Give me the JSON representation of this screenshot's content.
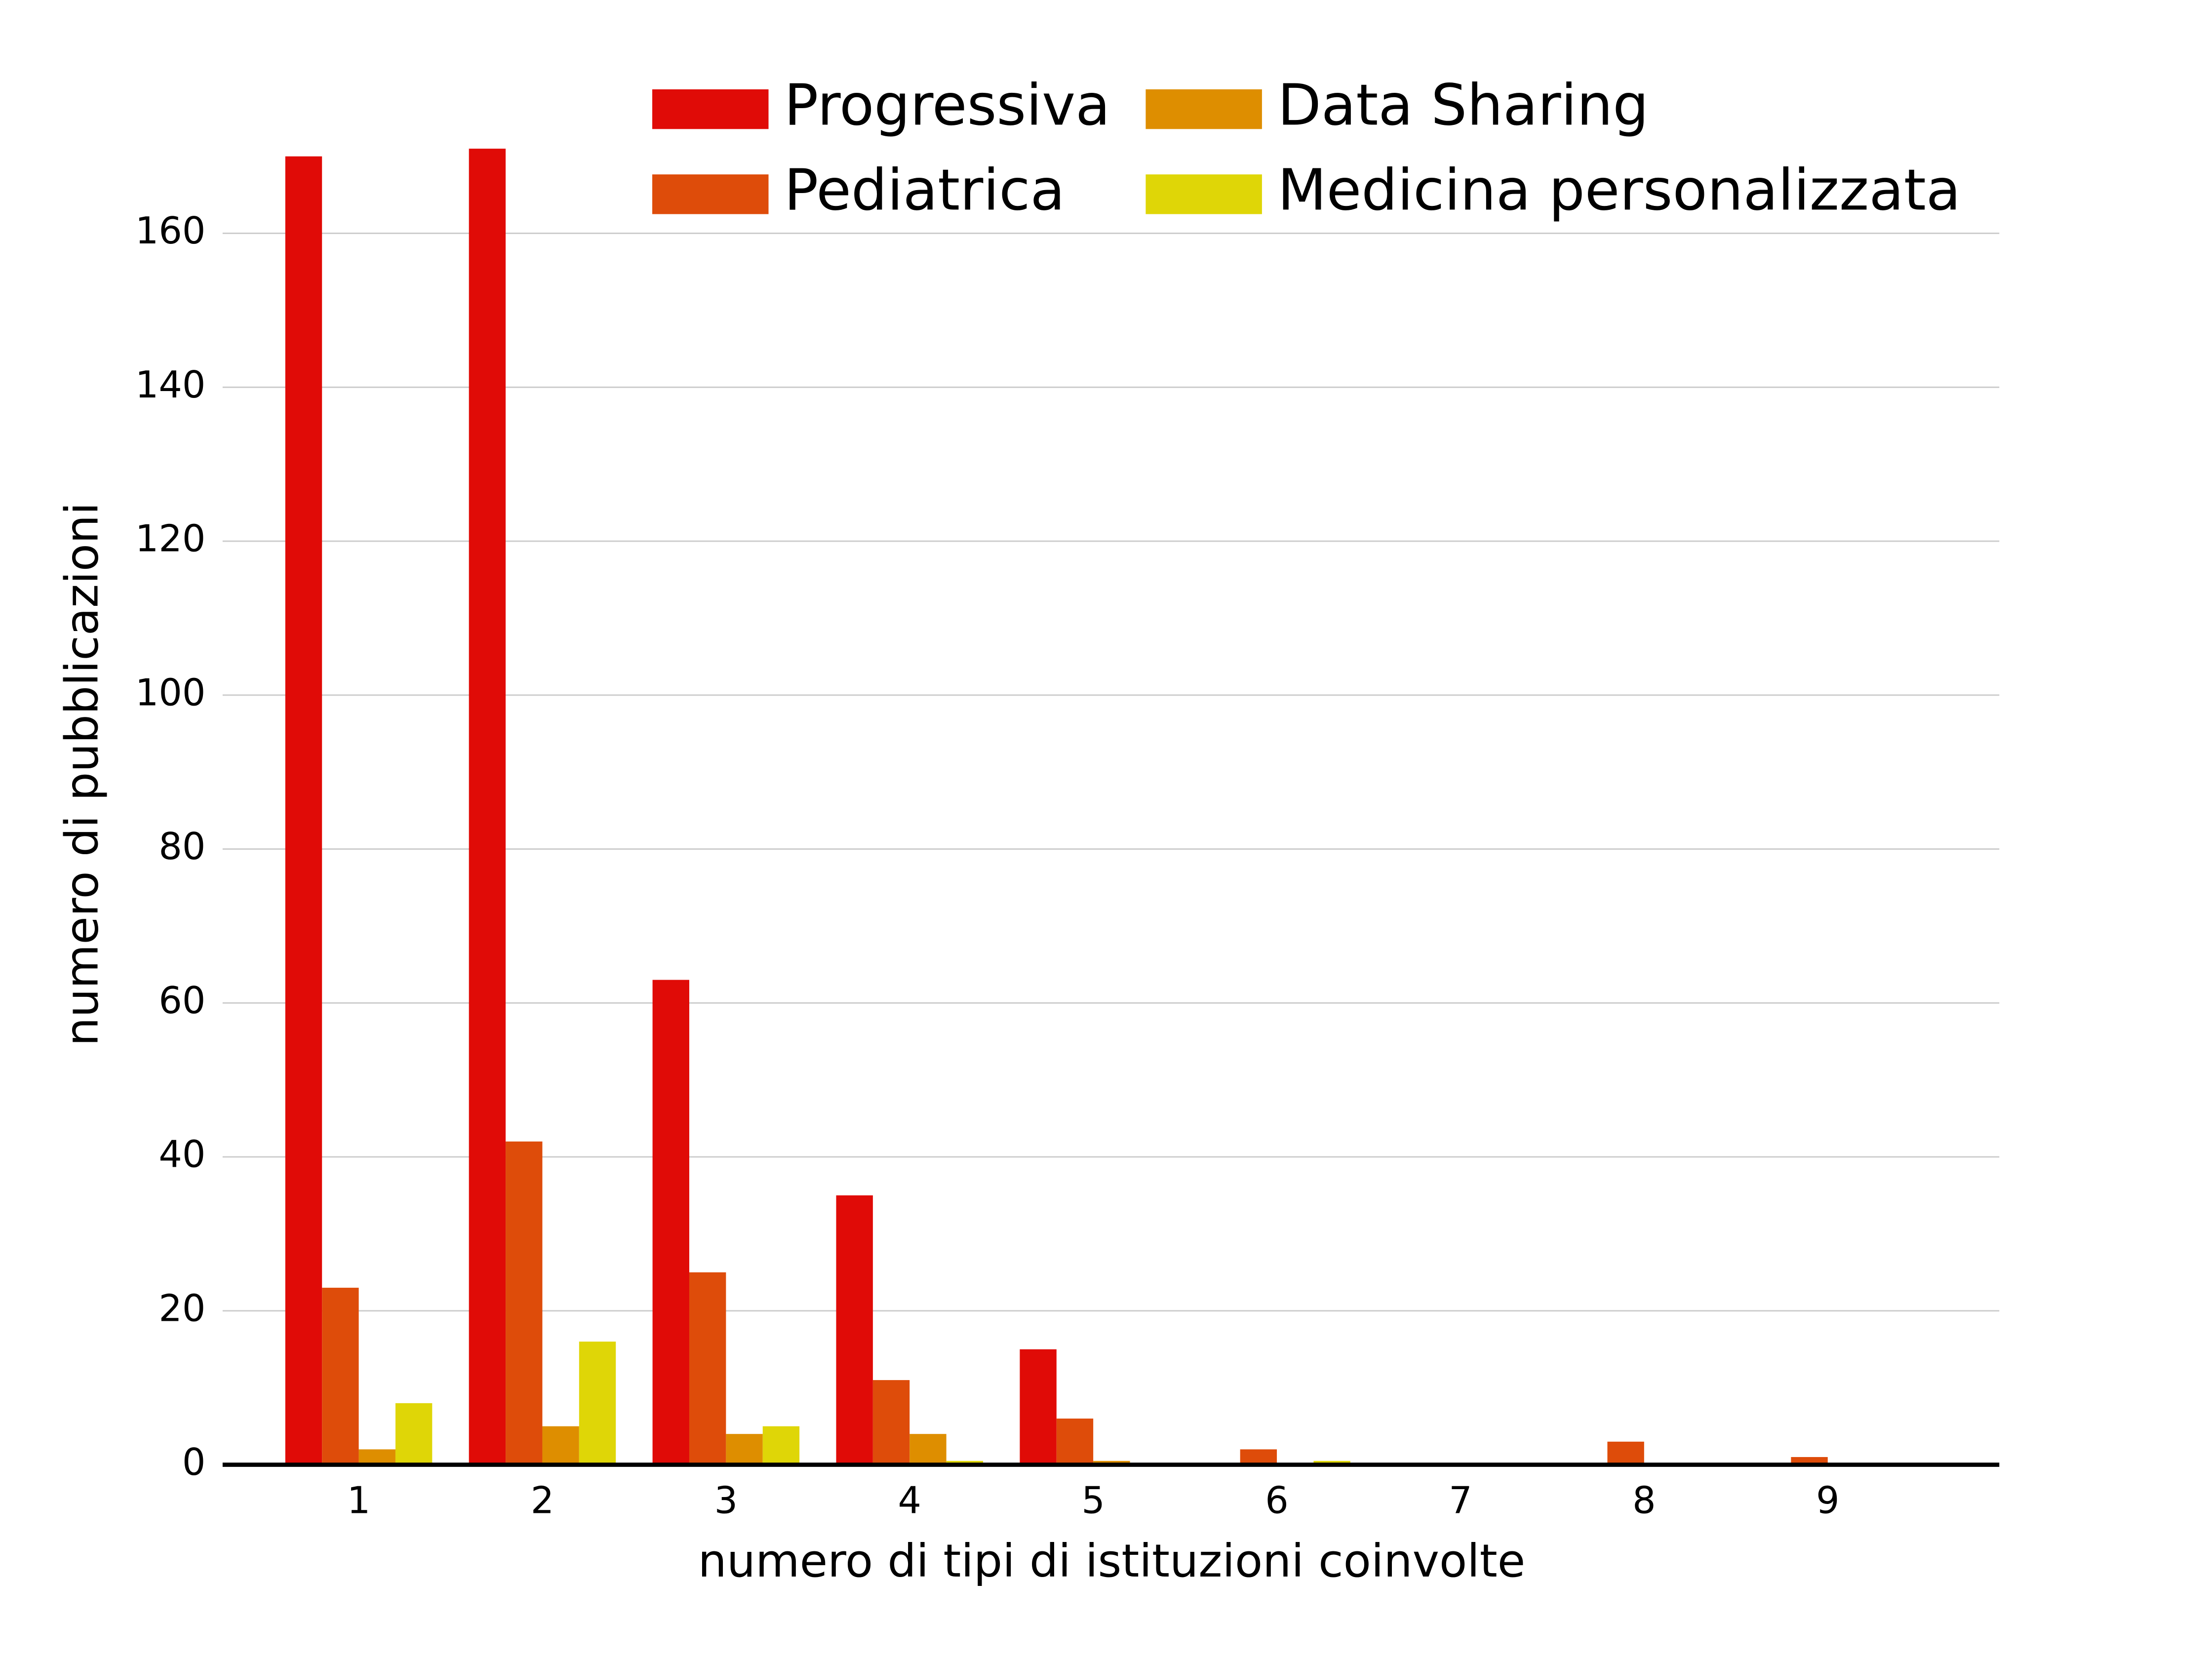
{
  "chart_data": {
    "type": "bar",
    "x_label": "numero di tipi di istituzioni coinvolte",
    "y_label": "numero di pubblicazioni",
    "categories": [
      "1",
      "2",
      "3",
      "4",
      "5",
      "6",
      "7",
      "8",
      "9"
    ],
    "series": [
      {
        "name": "Progressiva",
        "color": "#e00b07",
        "values": [
          170,
          171,
          63,
          35,
          15,
          0,
          0,
          0,
          0
        ]
      },
      {
        "name": "Pediatrica",
        "color": "#de4c0a",
        "values": [
          23,
          42,
          25,
          11,
          6,
          2,
          0,
          3,
          1
        ]
      },
      {
        "name": "Data Sharing",
        "color": "#de8e00",
        "values": [
          2,
          5,
          4,
          4,
          0.5,
          0,
          0,
          0,
          0
        ]
      },
      {
        "name": "Medicina personalizzata",
        "color": "#dfd607",
        "values": [
          8,
          16,
          5,
          0.5,
          0,
          0.5,
          0,
          0,
          0
        ]
      }
    ],
    "ylim": [
      0,
      180
    ],
    "yticks": [
      0,
      20,
      40,
      60,
      80,
      100,
      120,
      140,
      160
    ],
    "grid": true
  }
}
